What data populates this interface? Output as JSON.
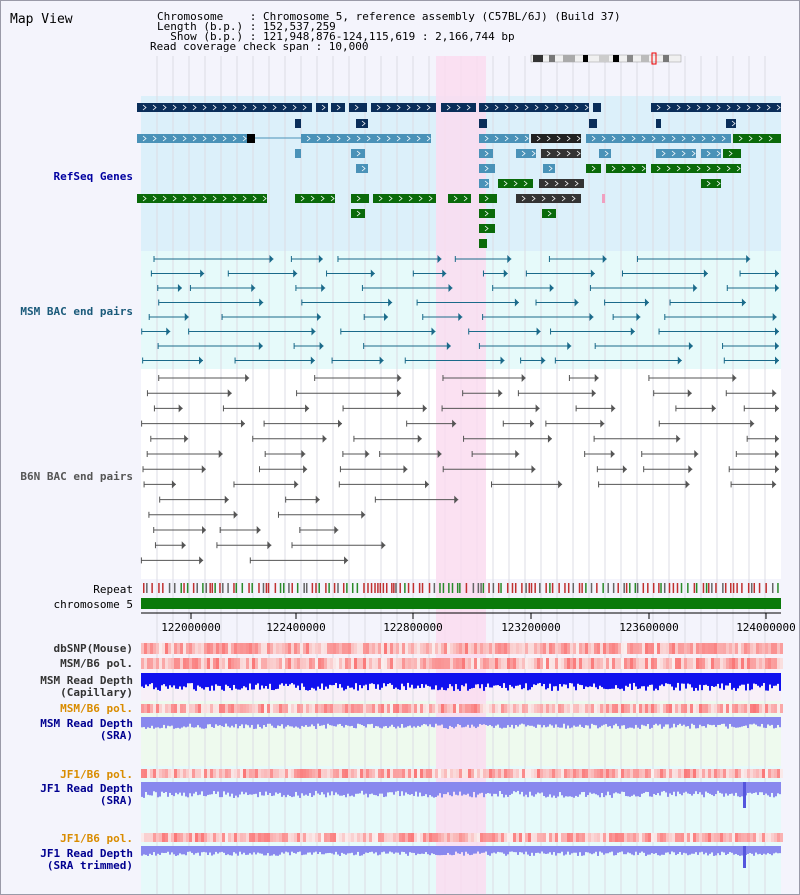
{
  "title": "Map View",
  "info": {
    "chromosome_label": "Chromosome    : Chromosome 5, reference assembly (C57BL/6J) (Build 37)",
    "length_label": "Length (b.p.) : 152,537,259",
    "show_label": "  Show (b.p.) : 121,948,876-124,115,619 : 2,166,744 bp",
    "coverage_label": "Read coverage check span : 10,000"
  },
  "tracks": {
    "refseq": "RefSeq Genes",
    "msm_bac": "MSM BAC end pairs",
    "b6n_bac": "B6N BAC end pairs",
    "repeat": "Repeat",
    "chromosome": "chromosome 5",
    "dbsnp": "dbSNP(Mouse)",
    "msm_b6_pol_1": "MSM/B6 pol.",
    "msm_read_depth_cap_1": "MSM Read Depth",
    "msm_read_depth_cap_2": "(Capillary)",
    "msm_b6_pol_2": "MSM/B6 pol.",
    "msm_read_depth_sra_1": "MSM Read Depth",
    "msm_read_depth_sra_2": "(SRA)",
    "jf1_b6_pol_1": "JF1/B6 pol.",
    "jf1_read_depth_sra_1": "JF1 Read Depth",
    "jf1_read_depth_sra_2": "(SRA)",
    "jf1_b6_pol_2": "JF1/B6 pol.",
    "jf1_read_depth_trim_1": "JF1 Read Depth",
    "jf1_read_depth_trim_2": "(SRA trimmed)"
  },
  "axis": {
    "ticks": [
      "122000000",
      "122400000",
      "122800000",
      "123200000",
      "123600000",
      "124000000"
    ]
  },
  "colors": {
    "refseq_bg": "#dcf0fa",
    "msm_bg": "#e6fafa",
    "highlight": "#fadcf0",
    "gene_dark": "#0a2e5a",
    "gene_mid": "#4a92b8",
    "gene_green": "#0a6a0a",
    "msm_pair": "#1a6a8a",
    "b6n_pair": "#555555",
    "chromosome_bar": "#0a7a0a",
    "depth_cap": "#1010ee",
    "depth_sra": "#8888ee",
    "label_orange": "#d98c00",
    "label_blue": "#000090"
  }
}
